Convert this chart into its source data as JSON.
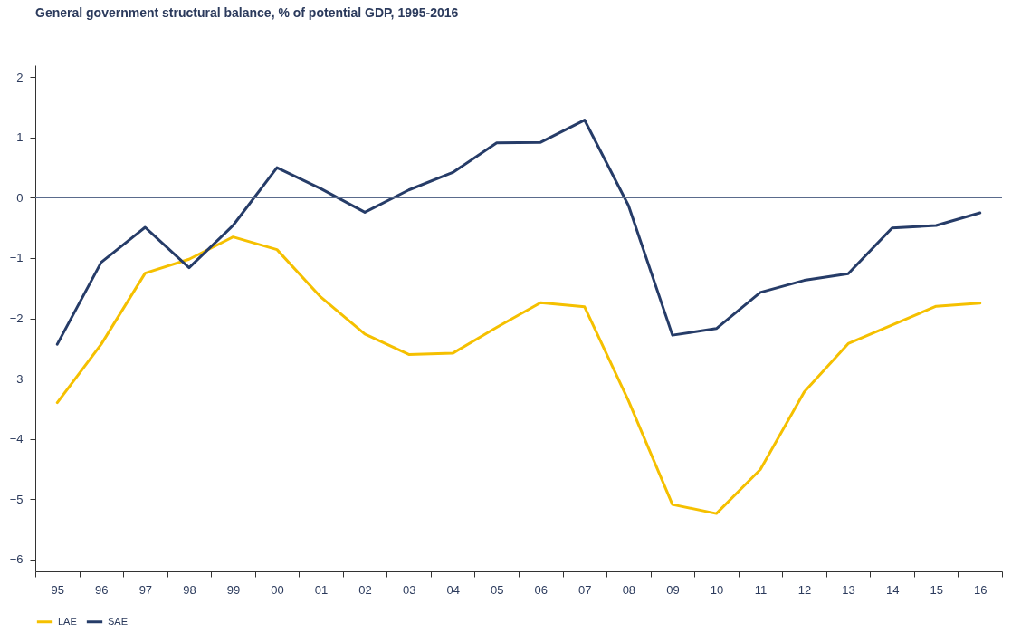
{
  "chart_data": {
    "type": "line",
    "title": "General government structural balance, % of potential GDP, 1995-2016",
    "categories": [
      "95",
      "96",
      "97",
      "98",
      "99",
      "00",
      "01",
      "02",
      "03",
      "04",
      "05",
      "06",
      "07",
      "08",
      "09",
      "10",
      "11",
      "12",
      "13",
      "14",
      "15",
      "16"
    ],
    "series": [
      {
        "name": "LAE",
        "color": "#f5c000",
        "values": [
          -3.4,
          -2.43,
          -1.25,
          -1.02,
          -0.65,
          -0.86,
          -1.65,
          -2.26,
          -2.6,
          -2.58,
          -2.15,
          -1.74,
          -1.81,
          -3.37,
          -5.09,
          -5.24,
          -4.51,
          -3.22,
          -2.42,
          -2.11,
          -1.8,
          -1.75
        ]
      },
      {
        "name": "SAE",
        "color": "#263c68",
        "values": [
          -2.43,
          -1.07,
          -0.49,
          -1.16,
          -0.46,
          0.5,
          0.15,
          -0.24,
          0.13,
          0.42,
          0.91,
          0.92,
          1.29,
          -0.13,
          -2.28,
          -2.17,
          -1.57,
          -1.37,
          -1.26,
          -0.5,
          -0.46,
          -0.25
        ]
      }
    ],
    "ylim": [
      -6.2,
      2.2
    ],
    "yticks": [
      -6,
      -5,
      -4,
      -3,
      -2,
      -1,
      0,
      1,
      2
    ],
    "ref_lines": [
      {
        "axis": "y",
        "value": 0,
        "color": "#5a6b8c"
      }
    ],
    "grid": false,
    "legend": "bottom",
    "marker": "none",
    "line_style": "solid"
  }
}
